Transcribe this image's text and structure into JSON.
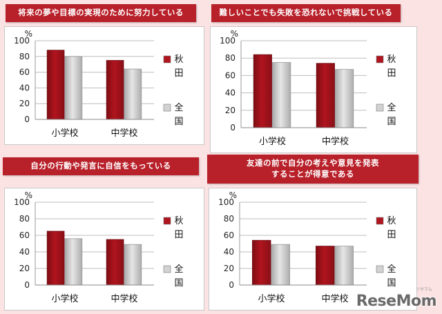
{
  "legend": {
    "akita": "秋田",
    "national": "全国"
  },
  "colors": {
    "akita": "#b0141e",
    "national": "#c8c8c8",
    "title_bg": "#b8202a"
  },
  "logo": {
    "main": "ReseMom",
    "sub": "リセマム"
  },
  "chart_data": [
    {
      "type": "bar",
      "title": "将来の夢や目標の実現のために努力している",
      "unit": "%",
      "categories": [
        "小学校",
        "中学校"
      ],
      "series": [
        {
          "name": "秋田",
          "values": [
            88,
            75
          ]
        },
        {
          "name": "全国",
          "values": [
            80,
            64
          ]
        }
      ],
      "ylim": [
        0,
        100
      ],
      "yticks": [
        "0",
        "20",
        "40",
        "60",
        "80",
        "100"
      ],
      "legend_position": "right"
    },
    {
      "type": "bar",
      "title": "難しいことでも失敗を恐れないで挑戦している",
      "unit": "%",
      "categories": [
        "小学校",
        "中学校"
      ],
      "series": [
        {
          "name": "秋田",
          "values": [
            84,
            74
          ]
        },
        {
          "name": "全国",
          "values": [
            75,
            67
          ]
        }
      ],
      "ylim": [
        0,
        100
      ],
      "yticks": [
        "0",
        "20",
        "40",
        "60",
        "80",
        "100"
      ],
      "legend_position": "right"
    },
    {
      "type": "bar",
      "title": "自分の行動や発言に自信をもっている",
      "unit": "%",
      "categories": [
        "小学校",
        "中学校"
      ],
      "series": [
        {
          "name": "秋田",
          "values": [
            65,
            55
          ]
        },
        {
          "name": "全国",
          "values": [
            56,
            49
          ]
        }
      ],
      "ylim": [
        0,
        100
      ],
      "yticks": [
        "0",
        "20",
        "40",
        "60",
        "80",
        "100"
      ],
      "legend_position": "right"
    },
    {
      "type": "bar",
      "title": "友達の前で自分の考えや意見を発表\nすることが得意である",
      "unit": "%",
      "categories": [
        "小学校",
        "中学校"
      ],
      "series": [
        {
          "name": "秋田",
          "values": [
            54,
            47
          ]
        },
        {
          "name": "全国",
          "values": [
            49,
            47
          ]
        }
      ],
      "ylim": [
        0,
        100
      ],
      "yticks": [
        "0",
        "20",
        "40",
        "60",
        "80",
        "100"
      ],
      "legend_position": "right"
    }
  ]
}
